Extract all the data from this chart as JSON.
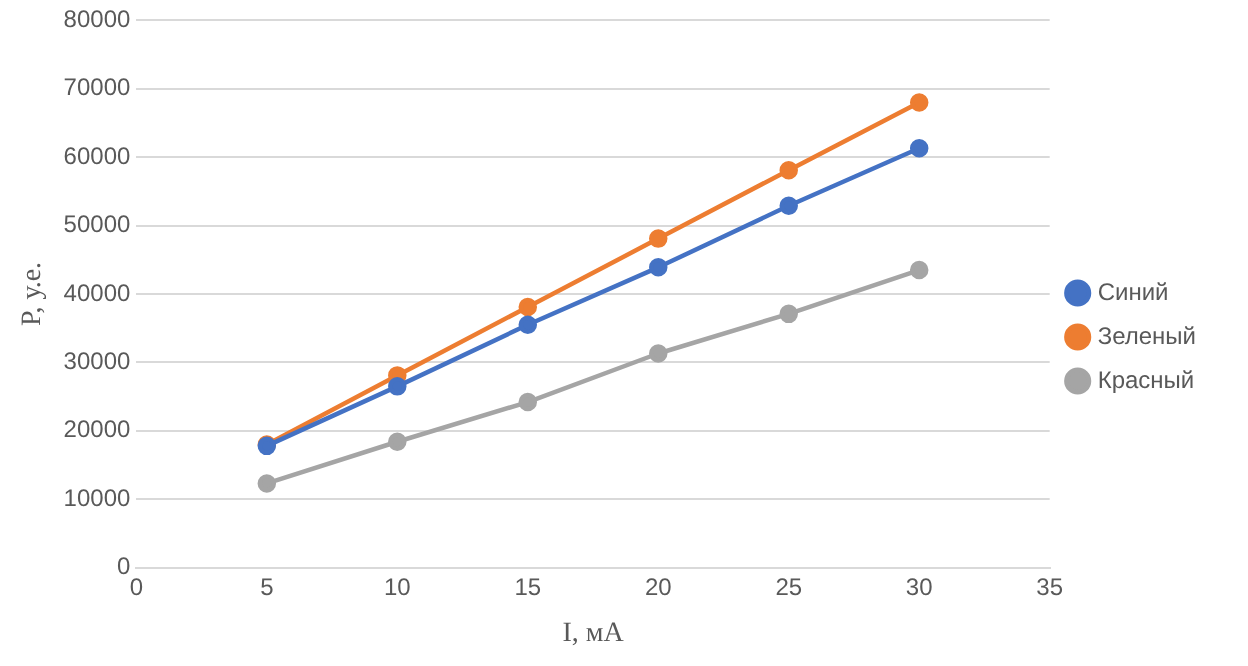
{
  "chart_data": {
    "type": "line",
    "xlabel": "I, мА",
    "ylabel": "P, у.е.",
    "x": [
      5,
      10,
      15,
      20,
      25,
      30
    ],
    "series": [
      {
        "name": "Синий",
        "color": "#4472c4",
        "values": [
          17800,
          26500,
          35500,
          43900,
          52900,
          61300
        ]
      },
      {
        "name": "Зеленый",
        "color": "#ed7d31",
        "values": [
          18000,
          28100,
          38100,
          48100,
          58100,
          68000
        ]
      },
      {
        "name": "Красный",
        "color": "#a5a5a5",
        "values": [
          12300,
          18400,
          24200,
          31300,
          37100,
          43500
        ]
      }
    ],
    "xlim": [
      0,
      35
    ],
    "xticks": [
      0,
      5,
      10,
      15,
      20,
      25,
      30,
      35
    ],
    "ylim": [
      0,
      80000
    ],
    "yticks": [
      0,
      10000,
      20000,
      30000,
      40000,
      50000,
      60000,
      70000,
      80000
    ],
    "grid": "y",
    "legend": "right",
    "marker": "circle",
    "line_style": "solid"
  }
}
